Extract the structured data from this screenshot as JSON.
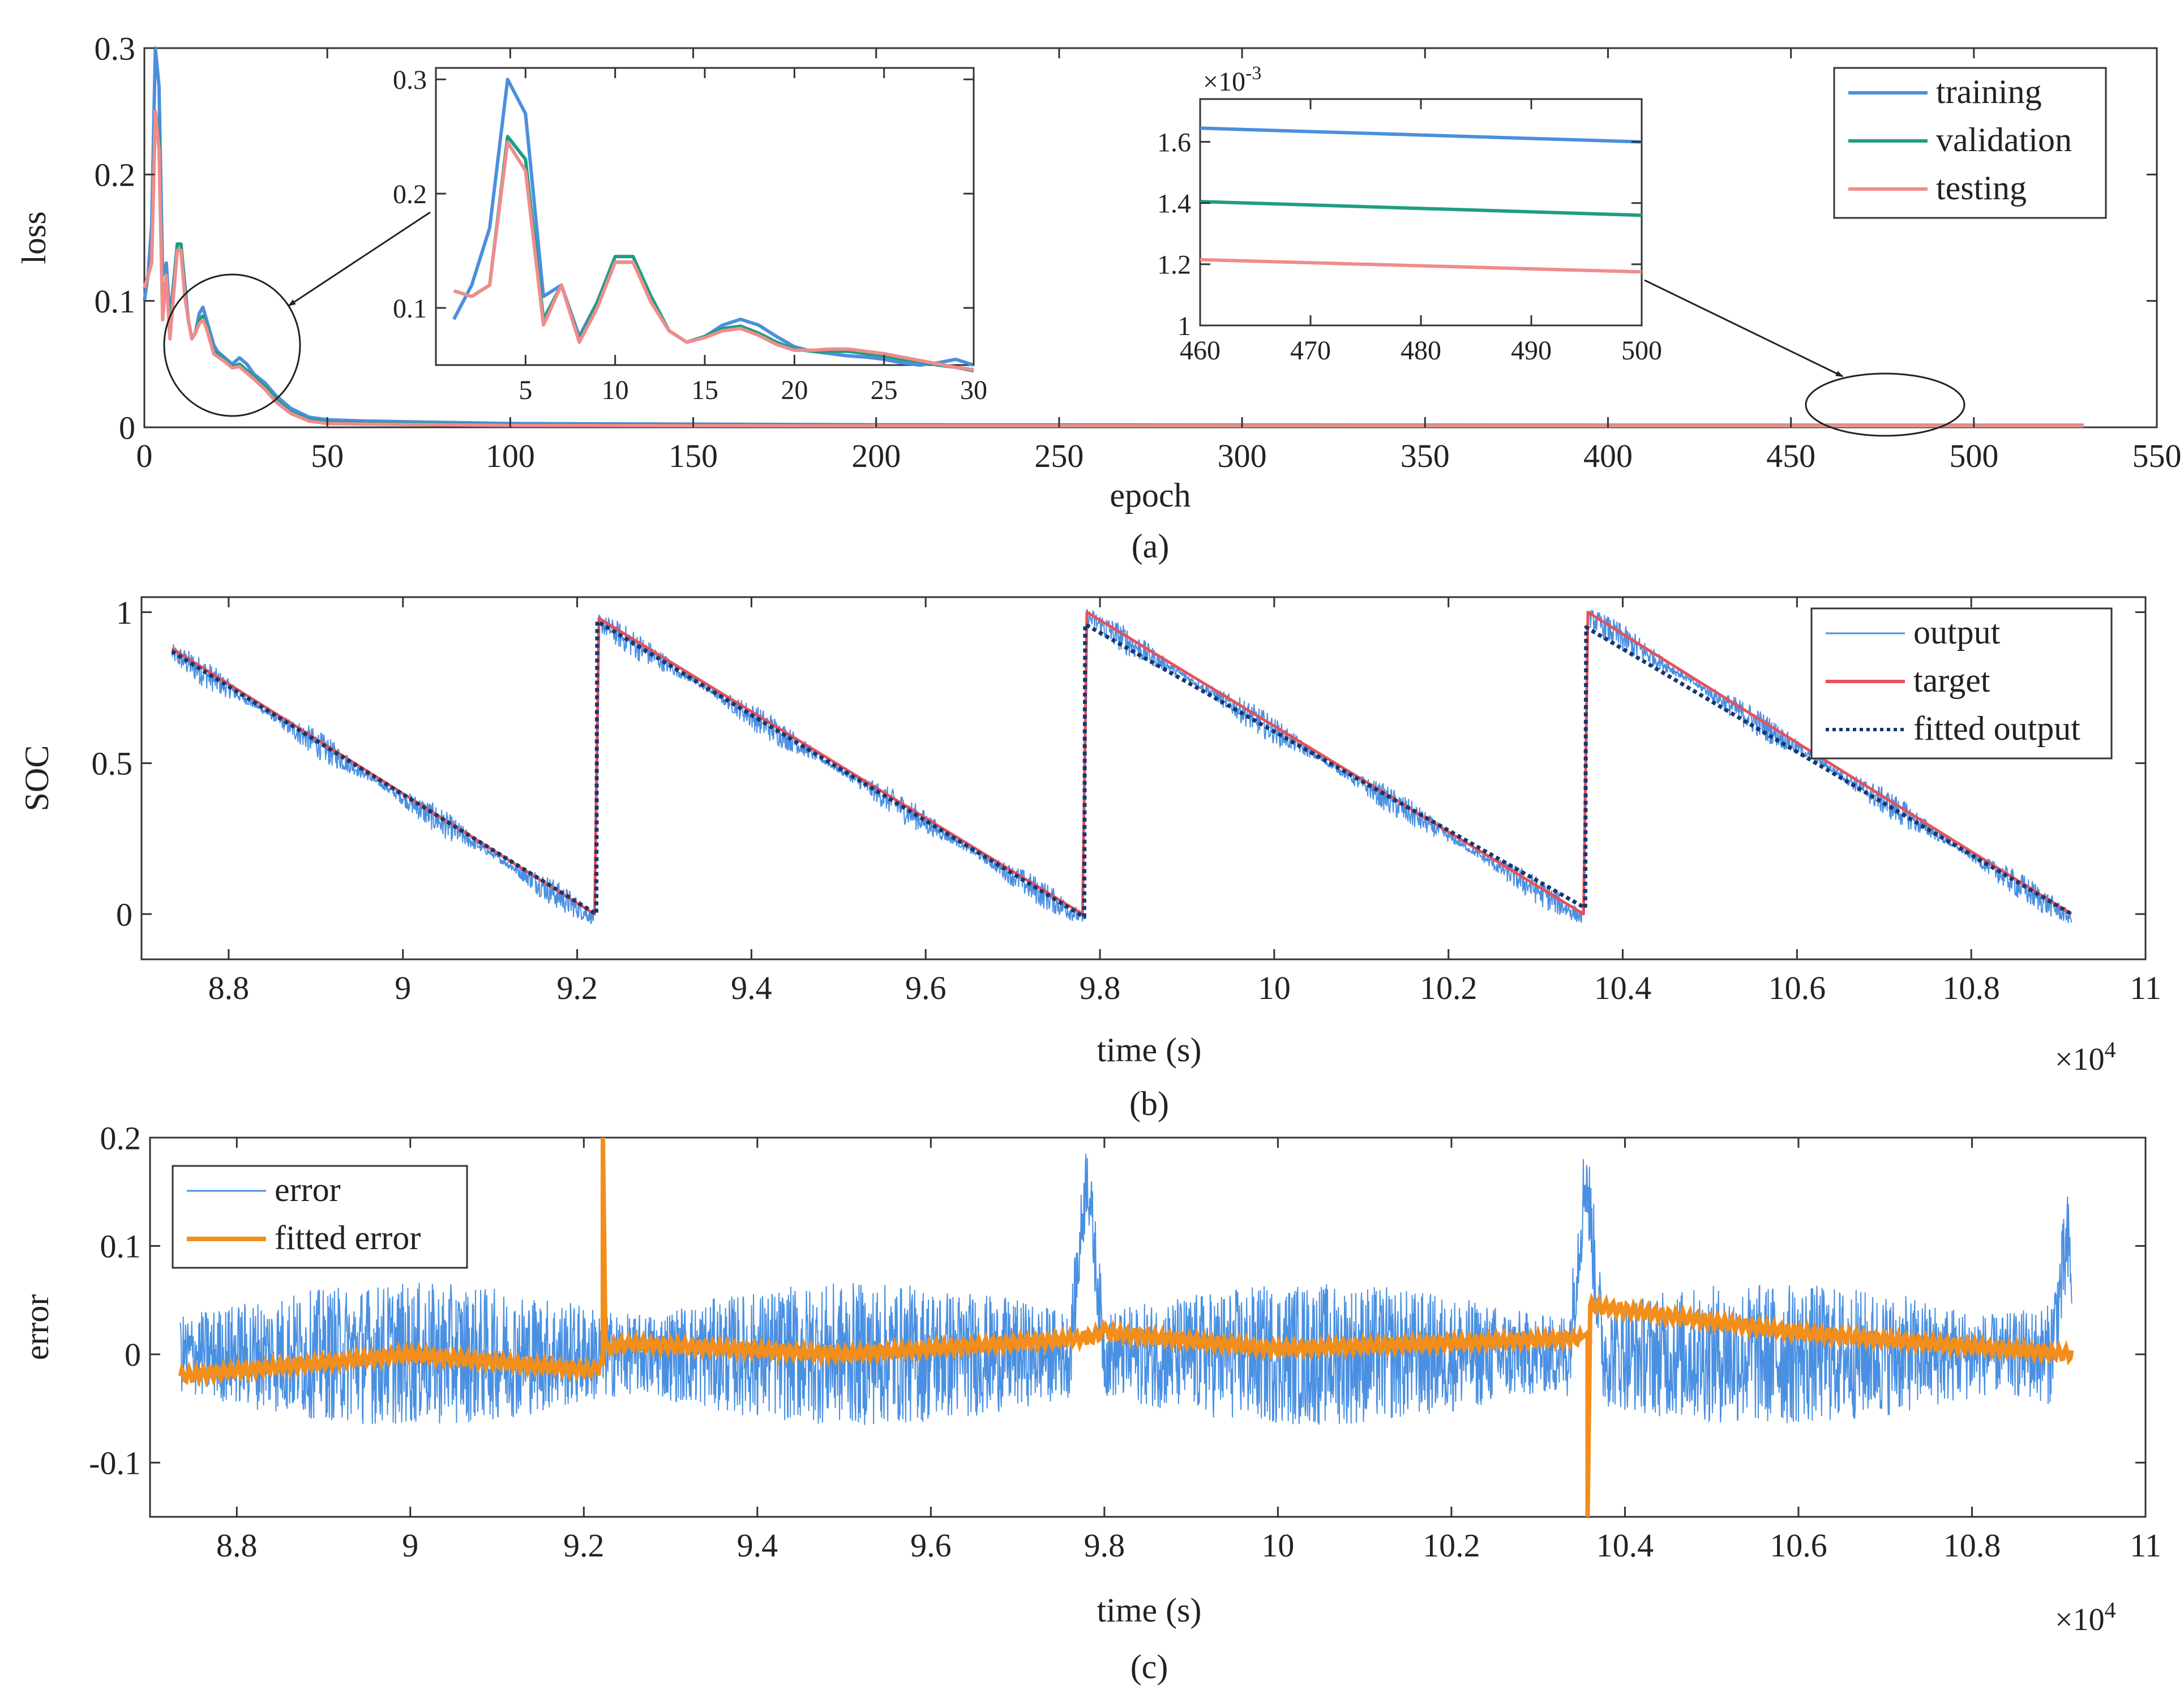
{
  "figure": {
    "panels": [
      "(a)",
      "(b)",
      "(c)"
    ]
  },
  "colors": {
    "training": "#4a8fdc",
    "validation": "#1e9e82",
    "testing": "#f08c8c",
    "output": "#4a90e2",
    "target": "#e8505b",
    "fitted_output": "#14386e",
    "error": "#4a90e2",
    "fitted_error": "#f28e1c",
    "axis": "#333333"
  },
  "chart_data": [
    {
      "id": "a",
      "type": "line",
      "caption": "(a)",
      "xlabel": "epoch",
      "ylabel": "loss",
      "xlim": [
        0,
        550
      ],
      "ylim": [
        0,
        0.3
      ],
      "xticks": [
        0,
        50,
        100,
        150,
        200,
        250,
        300,
        350,
        400,
        450,
        500,
        550
      ],
      "yticks": [
        0,
        0.1,
        0.2,
        0.3
      ],
      "legend": {
        "position": "top-right",
        "entries": [
          "training",
          "validation",
          "testing"
        ]
      },
      "series": [
        {
          "name": "training",
          "x": [
            0,
            1,
            2,
            3,
            4,
            5,
            6,
            7,
            8,
            9,
            10,
            11,
            12,
            13,
            14,
            15,
            16,
            17,
            18,
            19,
            20,
            22,
            24,
            26,
            28,
            30,
            33,
            36,
            40,
            45,
            50,
            60,
            80,
            100,
            150,
            200,
            300,
            400,
            500,
            530
          ],
          "values": [
            0.1,
            0.12,
            0.16,
            0.3,
            0.27,
            0.12,
            0.13,
            0.085,
            0.115,
            0.145,
            0.145,
            0.115,
            0.085,
            0.07,
            0.075,
            0.09,
            0.095,
            0.085,
            0.075,
            0.065,
            0.06,
            0.055,
            0.05,
            0.055,
            0.05,
            0.042,
            0.035,
            0.025,
            0.015,
            0.008,
            0.006,
            0.005,
            0.004,
            0.003,
            0.0025,
            0.002,
            0.0018,
            0.0017,
            0.0016,
            0.0016
          ]
        },
        {
          "name": "validation",
          "x": [
            0,
            1,
            2,
            3,
            4,
            5,
            6,
            7,
            8,
            9,
            10,
            11,
            12,
            13,
            14,
            15,
            16,
            17,
            18,
            19,
            20,
            22,
            24,
            26,
            28,
            30,
            33,
            36,
            40,
            45,
            50,
            60,
            80,
            100,
            150,
            200,
            300,
            400,
            500,
            530
          ],
          "values": [
            0.11,
            0.12,
            0.13,
            0.25,
            0.23,
            0.09,
            0.12,
            0.075,
            0.11,
            0.145,
            0.145,
            0.11,
            0.085,
            0.07,
            0.075,
            0.085,
            0.088,
            0.08,
            0.07,
            0.06,
            0.058,
            0.053,
            0.048,
            0.05,
            0.045,
            0.04,
            0.032,
            0.022,
            0.012,
            0.006,
            0.004,
            0.003,
            0.0025,
            0.002,
            0.0018,
            0.0016,
            0.0015,
            0.0014,
            0.0014,
            0.0014
          ]
        },
        {
          "name": "testing",
          "x": [
            0,
            1,
            2,
            3,
            4,
            5,
            6,
            7,
            8,
            9,
            10,
            11,
            12,
            13,
            14,
            15,
            16,
            17,
            18,
            19,
            20,
            22,
            24,
            26,
            28,
            30,
            33,
            36,
            40,
            45,
            50,
            60,
            80,
            100,
            150,
            200,
            300,
            400,
            500,
            530
          ],
          "values": [
            0.11,
            0.12,
            0.13,
            0.25,
            0.22,
            0.085,
            0.12,
            0.07,
            0.105,
            0.14,
            0.14,
            0.105,
            0.085,
            0.07,
            0.075,
            0.082,
            0.085,
            0.078,
            0.068,
            0.058,
            0.056,
            0.052,
            0.047,
            0.048,
            0.043,
            0.038,
            0.03,
            0.02,
            0.011,
            0.005,
            0.003,
            0.0025,
            0.002,
            0.0015,
            0.0013,
            0.0012,
            0.0012,
            0.0012,
            0.0012,
            0.0012
          ]
        }
      ],
      "insets": [
        {
          "id": "a_inset1",
          "type": "line",
          "xlim": [
            0,
            30
          ],
          "ylim": [
            0.05,
            0.31
          ],
          "xticks": [
            5,
            10,
            15,
            20,
            25,
            30
          ],
          "yticks": [
            0.1,
            0.2,
            0.3
          ],
          "series": [
            {
              "name": "training",
              "x": [
                1,
                2,
                3,
                4,
                5,
                6,
                7,
                8,
                9,
                10,
                11,
                12,
                13,
                14,
                15,
                16,
                17,
                18,
                19,
                20,
                21,
                22,
                23,
                24,
                25,
                26,
                27,
                28,
                29,
                30
              ],
              "values": [
                0.09,
                0.12,
                0.17,
                0.3,
                0.27,
                0.11,
                0.12,
                0.075,
                0.105,
                0.14,
                0.14,
                0.11,
                0.08,
                0.07,
                0.075,
                0.085,
                0.09,
                0.085,
                0.075,
                0.066,
                0.062,
                0.06,
                0.058,
                0.057,
                0.055,
                0.052,
                0.05,
                0.052,
                0.055,
                0.05
              ]
            },
            {
              "name": "validation",
              "x": [
                1,
                2,
                3,
                4,
                5,
                6,
                7,
                8,
                9,
                10,
                11,
                12,
                13,
                14,
                15,
                16,
                17,
                18,
                19,
                20,
                21,
                22,
                23,
                24,
                25,
                26,
                27,
                28,
                29,
                30
              ],
              "values": [
                0.115,
                0.11,
                0.12,
                0.25,
                0.23,
                0.09,
                0.12,
                0.072,
                0.105,
                0.145,
                0.145,
                0.11,
                0.08,
                0.07,
                0.075,
                0.082,
                0.084,
                0.078,
                0.07,
                0.064,
                0.062,
                0.062,
                0.062,
                0.06,
                0.058,
                0.055,
                0.053,
                0.05,
                0.048,
                0.045
              ]
            },
            {
              "name": "testing",
              "x": [
                1,
                2,
                3,
                4,
                5,
                6,
                7,
                8,
                9,
                10,
                11,
                12,
                13,
                14,
                15,
                16,
                17,
                18,
                19,
                20,
                21,
                22,
                23,
                24,
                25,
                26,
                27,
                28,
                29,
                30
              ],
              "values": [
                0.115,
                0.11,
                0.12,
                0.245,
                0.22,
                0.085,
                0.12,
                0.07,
                0.1,
                0.14,
                0.14,
                0.105,
                0.08,
                0.07,
                0.074,
                0.08,
                0.082,
                0.076,
                0.068,
                0.063,
                0.063,
                0.064,
                0.064,
                0.062,
                0.06,
                0.057,
                0.054,
                0.051,
                0.048,
                0.046
              ]
            }
          ]
        },
        {
          "id": "a_inset2",
          "type": "line",
          "xlim": [
            460,
            500
          ],
          "ylim": [
            1.0,
            1.74
          ],
          "xticks": [
            460,
            470,
            480,
            490,
            500
          ],
          "yticks": [
            1,
            1.2,
            1.4,
            1.6
          ],
          "yscale_label": "×10",
          "yscale_exp": "-3",
          "series": [
            {
              "name": "training",
              "x": [
                460,
                500
              ],
              "values": [
                1.645,
                1.6
              ]
            },
            {
              "name": "validation",
              "x": [
                460,
                500
              ],
              "values": [
                1.405,
                1.36
              ]
            },
            {
              "name": "testing",
              "x": [
                460,
                500
              ],
              "values": [
                1.215,
                1.175
              ]
            }
          ]
        }
      ]
    },
    {
      "id": "b",
      "type": "line",
      "caption": "(b)",
      "xlabel": "time (s)",
      "ylabel": "SOC",
      "xlim": [
        8.7,
        11
      ],
      "ylim": [
        -0.15,
        1.05
      ],
      "xticks": [
        8.8,
        9,
        9.2,
        9.4,
        9.6,
        9.8,
        10,
        10.2,
        10.4,
        10.6,
        10.8,
        11
      ],
      "xtick_labels": [
        "8.8",
        "9",
        "9.2",
        "9.4",
        "9.6",
        "9.8",
        "10",
        "10.2",
        "10.4",
        "10.6",
        "10.8",
        "11"
      ],
      "yticks": [
        0,
        0.5,
        1
      ],
      "xscale_label": "×10",
      "xscale_exp": "4",
      "legend": {
        "position": "top-right",
        "entries": [
          "output",
          "target",
          "fitted output"
        ]
      },
      "series": [
        {
          "name": "target",
          "x": [
            8.735,
            9.22,
            9.225,
            9.78,
            9.785,
            10.355,
            10.36,
            10.915
          ],
          "values": [
            0.88,
            0.0,
            0.98,
            0.0,
            1.0,
            0.0,
            1.0,
            0.0
          ]
        },
        {
          "name": "fitted output",
          "x": [
            8.735,
            9.222,
            9.223,
            9.782,
            9.783,
            10.357,
            10.358,
            10.915
          ],
          "values": [
            0.87,
            0.0,
            0.97,
            -0.01,
            0.96,
            0.02,
            0.95,
            0.0
          ]
        }
      ],
      "noisy_series": {
        "name": "output",
        "base": "target",
        "noise_amplitude": 0.03,
        "note": "high-frequency noise around target"
      }
    },
    {
      "id": "c",
      "type": "line",
      "caption": "(c)",
      "xlabel": "time (s)",
      "ylabel": "error",
      "xlim": [
        8.7,
        11
      ],
      "ylim": [
        -0.15,
        0.2
      ],
      "xticks": [
        8.8,
        9,
        9.2,
        9.4,
        9.6,
        9.8,
        10,
        10.2,
        10.4,
        10.6,
        10.8,
        11
      ],
      "xtick_labels": [
        "8.8",
        "9",
        "9.2",
        "9.4",
        "9.6",
        "9.8",
        "10",
        "10.2",
        "10.4",
        "10.6",
        "10.8",
        "11"
      ],
      "yticks": [
        -0.1,
        0,
        0.1,
        0.2
      ],
      "xscale_label": "×10",
      "xscale_exp": "4",
      "legend": {
        "position": "top-left",
        "entries": [
          "error",
          "fitted error"
        ]
      },
      "series": [
        {
          "name": "fitted error",
          "x": [
            8.735,
            9.0,
            9.21,
            9.222,
            9.222,
            9.225,
            9.25,
            9.5,
            9.78,
            9.8,
            10.0,
            10.35,
            10.357,
            10.357,
            10.36,
            10.6,
            10.915
          ],
          "values": [
            -0.02,
            0.0,
            -0.015,
            -0.01,
            0.2,
            0.005,
            0.01,
            0.0,
            0.015,
            0.02,
            0.005,
            0.015,
            0.02,
            -0.15,
            0.045,
            0.02,
            0.0
          ]
        }
      ],
      "noisy_series": {
        "name": "error",
        "noise_amplitude": 0.06,
        "spikes": [
          {
            "x": 9.78,
            "value": 0.2
          },
          {
            "x": 10.355,
            "value": 0.2
          },
          {
            "x": 10.91,
            "value": 0.13
          }
        ]
      }
    }
  ]
}
